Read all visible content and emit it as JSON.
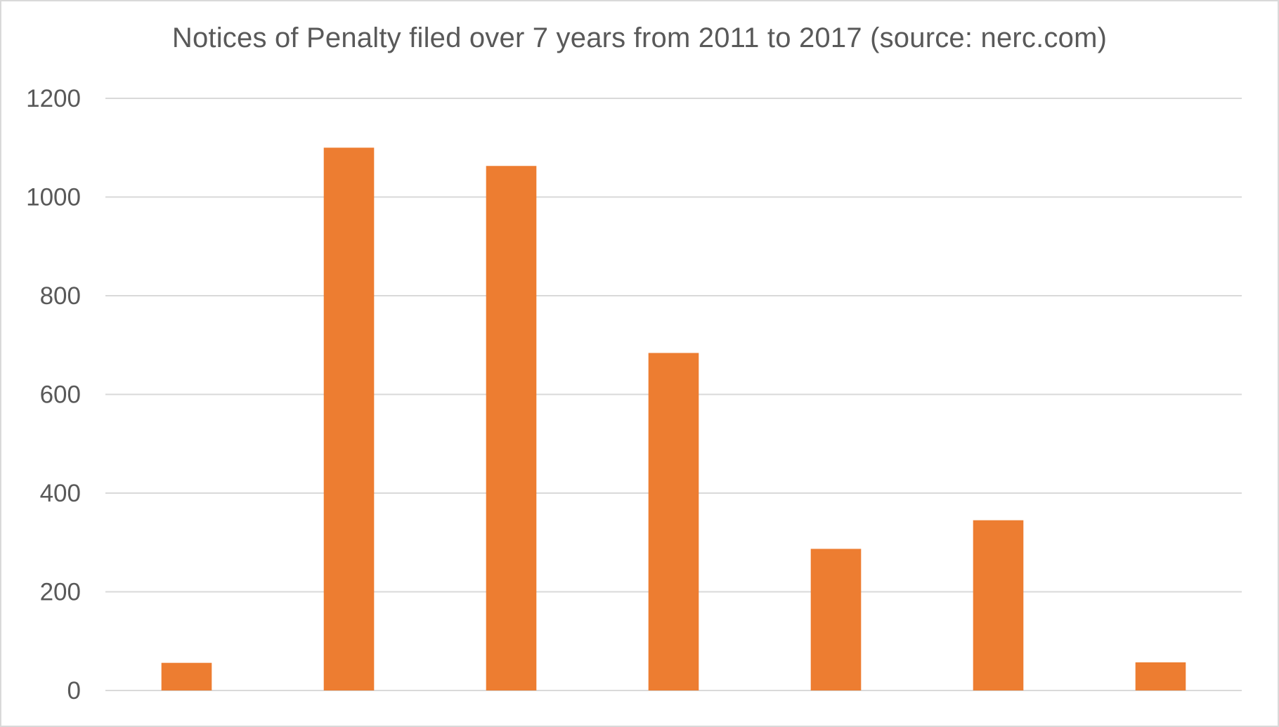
{
  "chart_data": {
    "type": "bar",
    "title": "Notices of Penalty filed over 7 years from 2011 to 2017 (source: nerc.com)",
    "xlabel": "",
    "ylabel": "",
    "categories": [
      "",
      "",
      "",
      "",
      "",
      "",
      ""
    ],
    "values": [
      56,
      1100,
      1063,
      684,
      287,
      345,
      57
    ],
    "ylim": [
      0,
      1200
    ],
    "yticks": [
      "0",
      "200",
      "400",
      "600",
      "800",
      "1000",
      "1200"
    ],
    "grid": true,
    "legend": "none",
    "colors": {
      "bar": "#ed7d31",
      "grid": "#d9d9d9",
      "text": "#595959",
      "frame": "#d9d9d9"
    }
  }
}
